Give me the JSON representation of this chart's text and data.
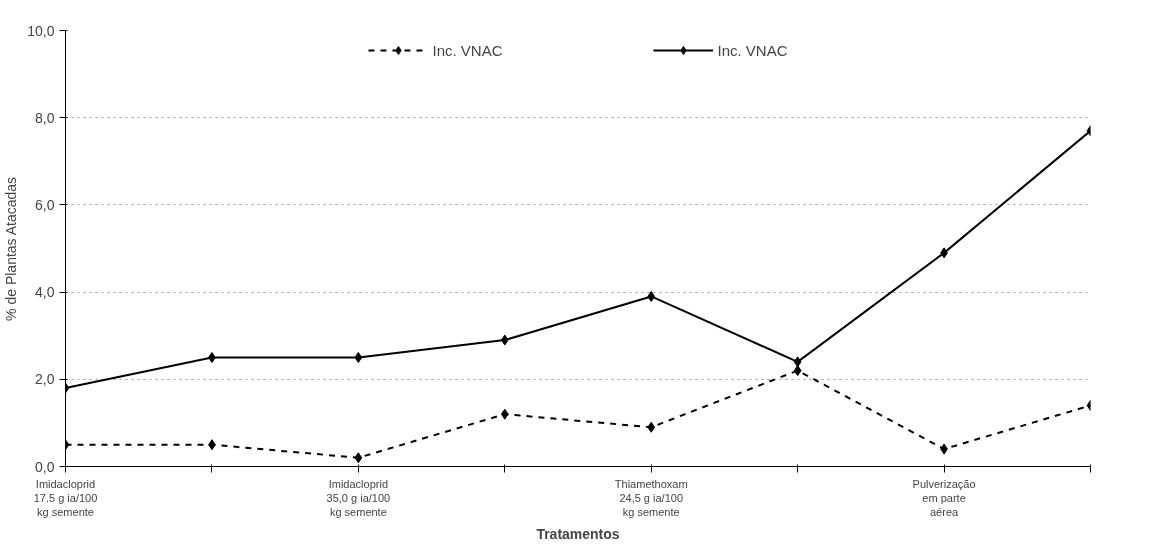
{
  "chart_data": {
    "type": "line",
    "xlabel": "Tratamentos",
    "ylabel": "% de Plantas Atacadas",
    "categories": [
      "Imidacloprid\n17.5 g ia/100\nkg semente",
      null,
      "Imidacloprid\n35,0 g ia/100\nkg semente",
      null,
      "Thiamethoxam\n24,5 g ia/100\nkg semente",
      null,
      "Pulverização\nem parte\naérea",
      null
    ],
    "series": [
      {
        "name": "Inc. VNAC",
        "color": "#000000",
        "line_style": "dashed",
        "values": [
          0.5,
          0.5,
          0.2,
          1.2,
          0.9,
          2.2,
          0.4,
          1.4
        ]
      },
      {
        "name": "Inc. VNAC",
        "color": "#000000",
        "line_style": "solid",
        "values": [
          1.8,
          2.5,
          2.5,
          2.9,
          3.9,
          2.4,
          4.9,
          7.7
        ]
      }
    ],
    "ylim": [
      0,
      10
    ],
    "yticks": [
      {
        "value": 0,
        "label": "0,0"
      },
      {
        "value": 2,
        "label": "2,0"
      },
      {
        "value": 4,
        "label": "4,0"
      },
      {
        "value": 6,
        "label": "6,0"
      },
      {
        "value": 8,
        "label": "8,0"
      },
      {
        "value": 10,
        "label": "10,0"
      }
    ],
    "grid": "y",
    "legend": "top",
    "marker": "diamond"
  }
}
